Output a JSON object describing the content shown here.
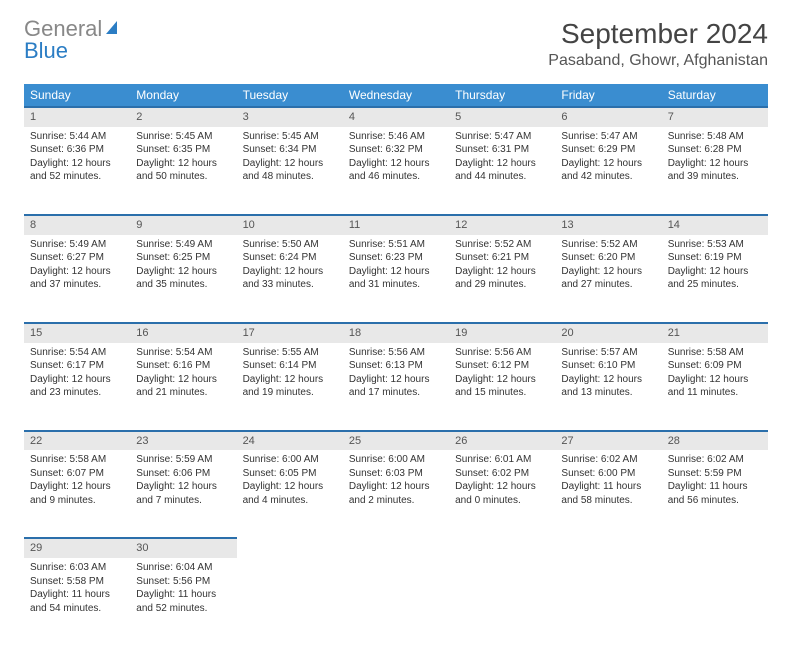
{
  "logo": {
    "text1": "General",
    "text2": "Blue",
    "icon_color": "#2b7dc4",
    "text1_color": "#888888"
  },
  "title": "September 2024",
  "location": "Pasaband, Ghowr, Afghanistan",
  "colors": {
    "header_bg": "#3a8dd0",
    "row_border": "#2b6fab",
    "daynum_bg": "#e8e8e8",
    "text": "#333333"
  },
  "weekdays": [
    "Sunday",
    "Monday",
    "Tuesday",
    "Wednesday",
    "Thursday",
    "Friday",
    "Saturday"
  ],
  "weeks": [
    [
      {
        "n": "1",
        "sr": "5:44 AM",
        "ss": "6:36 PM",
        "dl": "12 hours and 52 minutes."
      },
      {
        "n": "2",
        "sr": "5:45 AM",
        "ss": "6:35 PM",
        "dl": "12 hours and 50 minutes."
      },
      {
        "n": "3",
        "sr": "5:45 AM",
        "ss": "6:34 PM",
        "dl": "12 hours and 48 minutes."
      },
      {
        "n": "4",
        "sr": "5:46 AM",
        "ss": "6:32 PM",
        "dl": "12 hours and 46 minutes."
      },
      {
        "n": "5",
        "sr": "5:47 AM",
        "ss": "6:31 PM",
        "dl": "12 hours and 44 minutes."
      },
      {
        "n": "6",
        "sr": "5:47 AM",
        "ss": "6:29 PM",
        "dl": "12 hours and 42 minutes."
      },
      {
        "n": "7",
        "sr": "5:48 AM",
        "ss": "6:28 PM",
        "dl": "12 hours and 39 minutes."
      }
    ],
    [
      {
        "n": "8",
        "sr": "5:49 AM",
        "ss": "6:27 PM",
        "dl": "12 hours and 37 minutes."
      },
      {
        "n": "9",
        "sr": "5:49 AM",
        "ss": "6:25 PM",
        "dl": "12 hours and 35 minutes."
      },
      {
        "n": "10",
        "sr": "5:50 AM",
        "ss": "6:24 PM",
        "dl": "12 hours and 33 minutes."
      },
      {
        "n": "11",
        "sr": "5:51 AM",
        "ss": "6:23 PM",
        "dl": "12 hours and 31 minutes."
      },
      {
        "n": "12",
        "sr": "5:52 AM",
        "ss": "6:21 PM",
        "dl": "12 hours and 29 minutes."
      },
      {
        "n": "13",
        "sr": "5:52 AM",
        "ss": "6:20 PM",
        "dl": "12 hours and 27 minutes."
      },
      {
        "n": "14",
        "sr": "5:53 AM",
        "ss": "6:19 PM",
        "dl": "12 hours and 25 minutes."
      }
    ],
    [
      {
        "n": "15",
        "sr": "5:54 AM",
        "ss": "6:17 PM",
        "dl": "12 hours and 23 minutes."
      },
      {
        "n": "16",
        "sr": "5:54 AM",
        "ss": "6:16 PM",
        "dl": "12 hours and 21 minutes."
      },
      {
        "n": "17",
        "sr": "5:55 AM",
        "ss": "6:14 PM",
        "dl": "12 hours and 19 minutes."
      },
      {
        "n": "18",
        "sr": "5:56 AM",
        "ss": "6:13 PM",
        "dl": "12 hours and 17 minutes."
      },
      {
        "n": "19",
        "sr": "5:56 AM",
        "ss": "6:12 PM",
        "dl": "12 hours and 15 minutes."
      },
      {
        "n": "20",
        "sr": "5:57 AM",
        "ss": "6:10 PM",
        "dl": "12 hours and 13 minutes."
      },
      {
        "n": "21",
        "sr": "5:58 AM",
        "ss": "6:09 PM",
        "dl": "12 hours and 11 minutes."
      }
    ],
    [
      {
        "n": "22",
        "sr": "5:58 AM",
        "ss": "6:07 PM",
        "dl": "12 hours and 9 minutes."
      },
      {
        "n": "23",
        "sr": "5:59 AM",
        "ss": "6:06 PM",
        "dl": "12 hours and 7 minutes."
      },
      {
        "n": "24",
        "sr": "6:00 AM",
        "ss": "6:05 PM",
        "dl": "12 hours and 4 minutes."
      },
      {
        "n": "25",
        "sr": "6:00 AM",
        "ss": "6:03 PM",
        "dl": "12 hours and 2 minutes."
      },
      {
        "n": "26",
        "sr": "6:01 AM",
        "ss": "6:02 PM",
        "dl": "12 hours and 0 minutes."
      },
      {
        "n": "27",
        "sr": "6:02 AM",
        "ss": "6:00 PM",
        "dl": "11 hours and 58 minutes."
      },
      {
        "n": "28",
        "sr": "6:02 AM",
        "ss": "5:59 PM",
        "dl": "11 hours and 56 minutes."
      }
    ],
    [
      {
        "n": "29",
        "sr": "6:03 AM",
        "ss": "5:58 PM",
        "dl": "11 hours and 54 minutes."
      },
      {
        "n": "30",
        "sr": "6:04 AM",
        "ss": "5:56 PM",
        "dl": "11 hours and 52 minutes."
      },
      null,
      null,
      null,
      null,
      null
    ]
  ],
  "labels": {
    "sunrise": "Sunrise: ",
    "sunset": "Sunset: ",
    "daylight": "Daylight: "
  }
}
